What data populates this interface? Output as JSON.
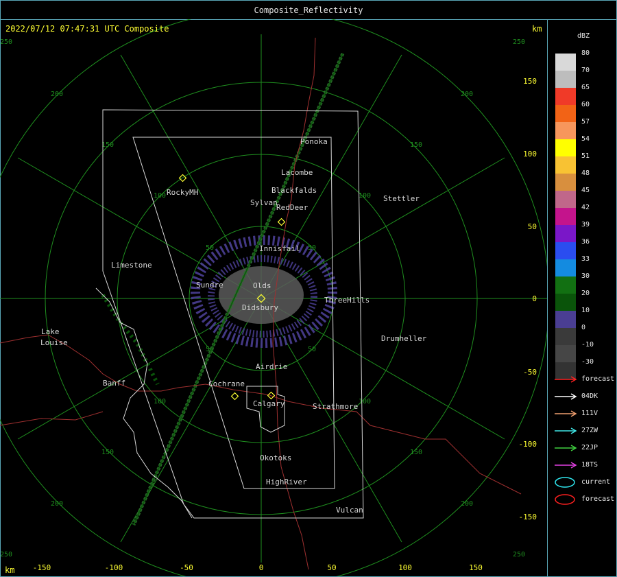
{
  "window": {
    "title": "Composite_Reflectivity"
  },
  "header": {
    "timestamp": "2022/07/12 07:47:31 UTC Composite",
    "unit_top": "km",
    "unit_bottom": "km"
  },
  "axes": {
    "x_ticks": [
      "-150",
      "-100",
      "-50",
      "0",
      "50",
      "100",
      "150"
    ],
    "y_ticks": [
      "150",
      "100",
      "50",
      "0",
      "-50",
      "-100",
      "-150"
    ],
    "ring_labels": [
      "50",
      "100",
      "150",
      "200",
      "250"
    ]
  },
  "places": {
    "ponoka": "Ponoka",
    "lacombe": "Lacombe",
    "blackfalds": "Blackfalds",
    "sylvan": "Sylvan",
    "reddeer": "RedDeer",
    "rockymh": "RockyMH",
    "stettler": "Stettler",
    "innisfail": "Innisfail",
    "limestone": "Limestone",
    "sundre": "Sundre",
    "olds": "Olds",
    "didsbury": "Didsbury",
    "threehills": "ThreeHills",
    "lake": "Lake",
    "louise": "Louise",
    "drumheller": "Drumheller",
    "airdrie": "Airdrie",
    "banff": "Banff",
    "cochrane": "Cochrane",
    "calgary": "Calgary",
    "strathmore": "Strathmore",
    "okotoks": "Okotoks",
    "highriver": "HighRiver",
    "vulcan": "Vulcan"
  },
  "legend": {
    "unit": "dBZ",
    "scale": [
      {
        "label": "80",
        "color": "#d9d9d9"
      },
      {
        "label": "70",
        "color": "#bdbdbd"
      },
      {
        "label": "65",
        "color": "#f03a28"
      },
      {
        "label": "60",
        "color": "#f26316"
      },
      {
        "label": "57",
        "color": "#f7965c"
      },
      {
        "label": "54",
        "color": "#ffff00"
      },
      {
        "label": "51",
        "color": "#f8c233"
      },
      {
        "label": "48",
        "color": "#d88f3e"
      },
      {
        "label": "45",
        "color": "#c0678a"
      },
      {
        "label": "42",
        "color": "#c4148c"
      },
      {
        "label": "39",
        "color": "#7a17c8"
      },
      {
        "label": "36",
        "color": "#2a4df0"
      },
      {
        "label": "33",
        "color": "#148be0"
      },
      {
        "label": "30",
        "color": "#127012"
      },
      {
        "label": "20",
        "color": "#0a540a"
      },
      {
        "label": "10",
        "color": "#4a3e93"
      },
      {
        "label": "0",
        "color": "#3a3a3a"
      },
      {
        "label": "-10",
        "color": "#464646"
      },
      {
        "label": "-30",
        "color": "#333333"
      }
    ],
    "tracks": [
      {
        "label": "forecast",
        "color": "#ff2020"
      },
      {
        "label": "04DK",
        "color": "#ffffff"
      },
      {
        "label": "111V",
        "color": "#f0a070"
      },
      {
        "label": "27ZW",
        "color": "#40e8e8"
      },
      {
        "label": "22JP",
        "color": "#40d040"
      },
      {
        "label": "18TS",
        "color": "#e040e0"
      }
    ],
    "areas": [
      {
        "label": "current",
        "color": "#30e8f0"
      },
      {
        "label": "forecast",
        "color": "#ff2020"
      }
    ]
  }
}
